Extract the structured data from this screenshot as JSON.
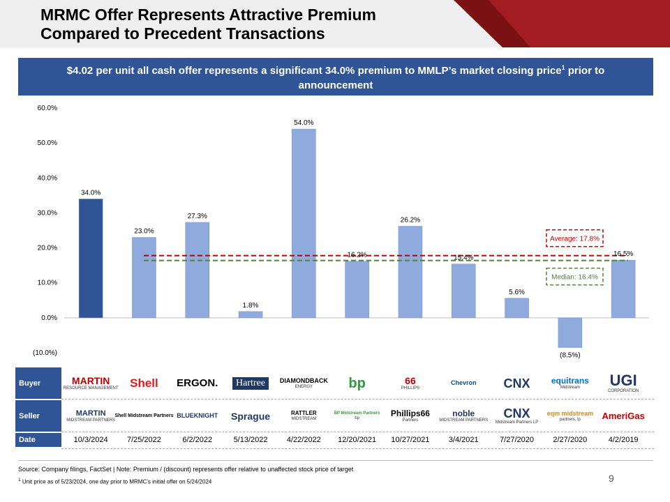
{
  "header": {
    "title_line1": "MRMC Offer Represents Attractive Premium",
    "title_line2": "Compared to Precedent Transactions"
  },
  "banner": {
    "text": "$4.02 per unit all cash offer represents a significant 34.0% premium to MMLP’s market closing price",
    "superscript": "1",
    "text_end": " prior to announcement"
  },
  "colors": {
    "brand_blue": "#2f5597",
    "bar_highlight": "#2f5597",
    "bar_default": "#8faadc",
    "average_line": "#c00000",
    "median_line": "#548235",
    "header_red": "#a11d21"
  },
  "chart_data": {
    "type": "bar",
    "categories": [
      "10/3/2024",
      "7/25/2022",
      "6/2/2022",
      "5/13/2022",
      "4/22/2022",
      "12/20/2021",
      "10/27/2021",
      "3/4/2021",
      "7/27/2020",
      "2/27/2020",
      "4/2/2019"
    ],
    "values": [
      34.0,
      23.0,
      27.3,
      1.8,
      54.0,
      16.2,
      26.2,
      15.4,
      5.6,
      -8.5,
      16.5
    ],
    "value_labels": [
      "34.0%",
      "23.0%",
      "27.3%",
      "1.8%",
      "54.0%",
      "16.2%",
      "26.2%",
      "15.4%",
      "5.6%",
      "(8.5%)",
      "16.5%"
    ],
    "highlight_index": 0,
    "ylim": [
      -10,
      60
    ],
    "yticks": [
      60,
      50,
      40,
      30,
      20,
      10,
      0,
      -10
    ],
    "ytick_labels": [
      "60.0%",
      "50.0%",
      "40.0%",
      "30.0%",
      "20.0%",
      "10.0%",
      "0.0%",
      "(10.0%)"
    ],
    "reference_lines": [
      {
        "name": "Average",
        "value": 17.8,
        "label": "Average: 17.8%",
        "style": "dashed"
      },
      {
        "name": "Median",
        "value": 16.4,
        "label": "Median: 16.4%",
        "style": "dashed"
      }
    ],
    "title": "",
    "xlabel": "",
    "ylabel": ""
  },
  "table": {
    "row_labels": {
      "buyer": "Buyer",
      "seller": "Seller",
      "date": "Date"
    },
    "buyers": [
      "MARTIN",
      "Shell",
      "ERGON.",
      "Hartree",
      "DIAMONDBACK",
      "bp",
      "66",
      "Chevron",
      "CNX",
      "equitrans",
      "UGI"
    ],
    "buyer_sub": [
      "RESOURCE MANAGEMENT",
      "",
      "",
      "",
      "ENERGY",
      "",
      "PHILLIPS",
      "",
      "",
      "Midstream",
      "CORPORATION"
    ],
    "sellers": [
      "MARTIN",
      "Shell Midstream Partners",
      "BLUEKNIGHT",
      "Sprague",
      "RATTLER",
      "BP Midstream Partners",
      "Phillips66",
      "noble",
      "CNX",
      "eqm midstream",
      "AmeriGas"
    ],
    "seller_sub": [
      "MIDSTREAM PARTNERS",
      "",
      "",
      "",
      "MIDSTREAM",
      "bp",
      "Partners",
      "MIDSTREAM PARTNERS",
      "Midstream Partners LP",
      "partners, lp",
      ""
    ],
    "dates": [
      "10/3/2024",
      "7/25/2022",
      "6/2/2022",
      "5/13/2022",
      "4/22/2022",
      "12/20/2021",
      "10/27/2021",
      "3/4/2021",
      "7/27/2020",
      "2/27/2020",
      "4/2/2019"
    ]
  },
  "footer": {
    "source_note": "Source: Company filings, FactSet | Note: Premium / (discount) represents offer relative to unaffected stock price of target",
    "footnote_mark": "1",
    "footnote": " Unit price as of 5/23/2024, one day prior to MRMC’s initial offer on 5/24/2024",
    "page_number": "9"
  }
}
